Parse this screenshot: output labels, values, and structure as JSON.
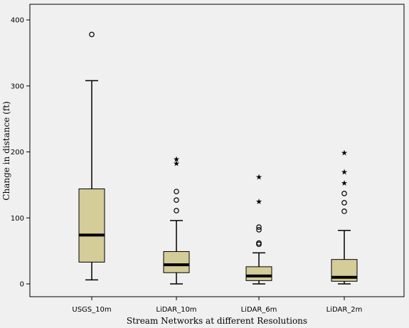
{
  "chart_data": {
    "type": "boxplot",
    "xlabel": "Stream Networks at different Resolutions",
    "ylabel": "Change in distance (ft)",
    "ylim": [
      -5,
      430
    ],
    "yticks": [
      0,
      100,
      200,
      300,
      400
    ],
    "grid": false,
    "colors": {
      "box_fill": "#d4cc99",
      "plot_bg": "#f0f0f0",
      "outer_bg": "#ffffff",
      "stroke": "#000000"
    },
    "categories": [
      "USGS_10m",
      "LiDAR_10m",
      "LiDAR_6m",
      "LiDAR_2m"
    ],
    "boxes": [
      {
        "name": "USGS_10m",
        "whisker_low": 6,
        "q1": 33,
        "median": 74,
        "q3": 144,
        "whisker_high": 308,
        "outliers": [
          378
        ],
        "extremes": []
      },
      {
        "name": "LiDAR_10m",
        "whisker_low": 0,
        "q1": 17,
        "median": 29,
        "q3": 49,
        "whisker_high": 96,
        "outliers": [
          111,
          127,
          140
        ],
        "extremes": [
          183,
          189
        ]
      },
      {
        "name": "LiDAR_6m",
        "whisker_low": 0,
        "q1": 5,
        "median": 12,
        "q3": 26,
        "whisker_high": 47,
        "outliers": [
          60,
          62,
          82,
          86
        ],
        "extremes": [
          125,
          162
        ]
      },
      {
        "name": "LiDAR_2m",
        "whisker_low": 0,
        "q1": 4,
        "median": 10,
        "q3": 37,
        "whisker_high": 81,
        "outliers": [
          110,
          123,
          137
        ],
        "extremes": [
          153,
          170,
          199
        ]
      }
    ]
  }
}
